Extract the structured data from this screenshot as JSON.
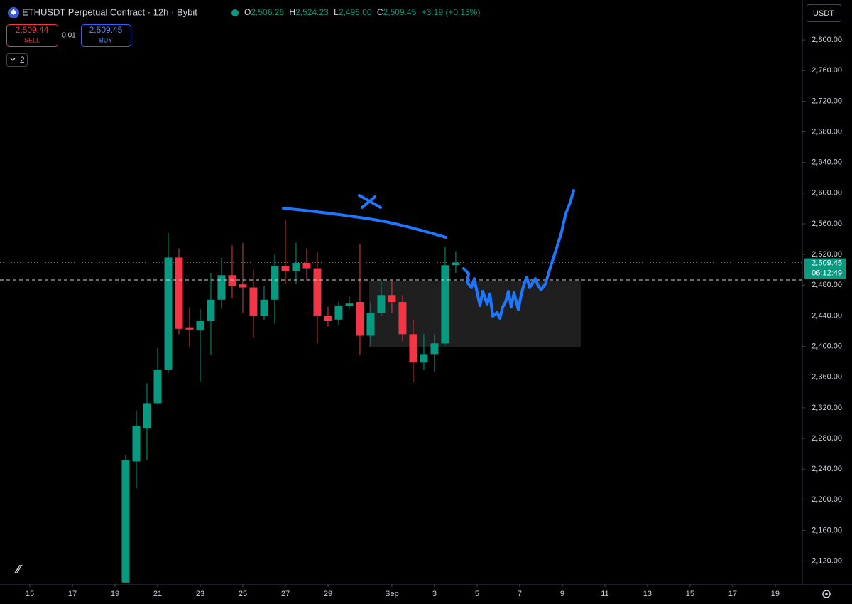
{
  "toolbar": {
    "symbol": "ETHUSDT Perpetual Contract · 12h · Bybit",
    "open_key": "O",
    "open": "2,506.26",
    "high_key": "H",
    "high": "2,524.23",
    "low_key": "L",
    "low": "2,496.00",
    "close_key": "C",
    "close": "2,509.45",
    "change": "+3.19 (+0.13%)",
    "sell_price": "2,509.44",
    "sell": "SELL",
    "spread": "0.01",
    "buy_price": "2,509.45",
    "buy": "BUY",
    "indicators": "2",
    "currency": "USDT"
  },
  "chart_data": {
    "type": "candlestick",
    "up_color": "#089981",
    "down_color": "#f23645",
    "x": [
      19.5,
      20,
      20.5,
      21,
      21.5,
      22,
      22.5,
      23,
      23.5,
      24,
      24.5,
      25,
      25.5,
      26,
      26.5,
      27,
      27.5,
      28,
      28.5,
      29,
      29.5,
      30,
      30.5,
      31,
      31.5,
      32,
      32.5,
      33,
      33.5,
      34,
      34.5,
      35
    ],
    "open": [
      2092,
      2250,
      2293,
      2326,
      2370,
      2516,
      2425,
      2421,
      2433,
      2461,
      2493,
      2481,
      2477,
      2440,
      2461,
      2505,
      2498,
      2509,
      2502,
      2440,
      2435,
      2453,
      2458,
      2414,
      2444,
      2467,
      2458,
      2416,
      2379,
      2390,
      2404,
      2506.26
    ],
    "high": [
      2259,
      2316,
      2352,
      2398,
      2548,
      2528,
      2451,
      2449,
      2496,
      2516,
      2532,
      2535,
      2500,
      2479,
      2520,
      2565,
      2535,
      2528,
      2523,
      2452,
      2458,
      2465,
      2534,
      2458,
      2486,
      2486,
      2467,
      2435,
      2416,
      2416,
      2530,
      2524.23
    ],
    "low": [
      2091,
      2215,
      2252,
      2324,
      2365,
      2416,
      2400,
      2354,
      2389,
      2449,
      2463,
      2444,
      2412,
      2435,
      2430,
      2481,
      2481,
      2486,
      2404,
      2426,
      2428,
      2449,
      2389,
      2400,
      2440,
      2444,
      2407,
      2353,
      2370,
      2367,
      2403,
      2496.0
    ],
    "close": [
      2252,
      2296,
      2326,
      2370,
      2516,
      2423,
      2422,
      2433,
      2461,
      2493,
      2479,
      2477,
      2440,
      2461,
      2505,
      2498,
      2509,
      2502,
      2440,
      2433,
      2453,
      2456,
      2414,
      2444,
      2467,
      2458,
      2416,
      2379,
      2390,
      2404,
      2506,
      2509.45
    ],
    "xlim": [
      13.6,
      51.27
    ],
    "xticks": [
      15,
      17,
      19,
      21,
      23,
      25,
      27,
      29,
      {
        "value": 32,
        "label": "Sep"
      },
      {
        "value": 34,
        "label": "3"
      },
      {
        "value": 36,
        "label": "5"
      },
      {
        "value": 38,
        "label": "7"
      },
      {
        "value": 40,
        "label": "9"
      },
      {
        "value": 42,
        "label": "11"
      },
      {
        "value": 44,
        "label": "13"
      },
      {
        "value": 46,
        "label": "15"
      },
      {
        "value": 48,
        "label": "17"
      },
      {
        "value": 50,
        "label": "19"
      }
    ],
    "ylim": [
      2090,
      2852
    ],
    "yticks": [
      {
        "value": 2120,
        "label": "2,120.00"
      },
      {
        "value": 2160,
        "label": "2,160.00"
      },
      {
        "value": 2200,
        "label": "2,200.00"
      },
      {
        "value": 2240,
        "label": "2,240.00"
      },
      {
        "value": 2280,
        "label": "2,280.00"
      },
      {
        "value": 2320,
        "label": "2,320.00"
      },
      {
        "value": 2360,
        "label": "2,360.00"
      },
      {
        "value": 2400,
        "label": "2,400.00"
      },
      {
        "value": 2440,
        "label": "2,440.00"
      },
      {
        "value": 2480,
        "label": "2,480.00"
      },
      {
        "value": 2520,
        "label": "2,520.00"
      },
      {
        "value": 2560,
        "label": "2,560.00"
      },
      {
        "value": 2600,
        "label": "2,600.00"
      },
      {
        "value": 2640,
        "label": "2,640.00"
      },
      {
        "value": 2680,
        "label": "2,680.00"
      },
      {
        "value": 2720,
        "label": "2,720.00"
      },
      {
        "value": 2760,
        "label": "2,760.00"
      },
      {
        "value": 2800,
        "label": "2,800.00"
      }
    ],
    "last_price": 2509.45,
    "last_price_label": "2,509.45",
    "countdown": "06:12:49"
  }
}
